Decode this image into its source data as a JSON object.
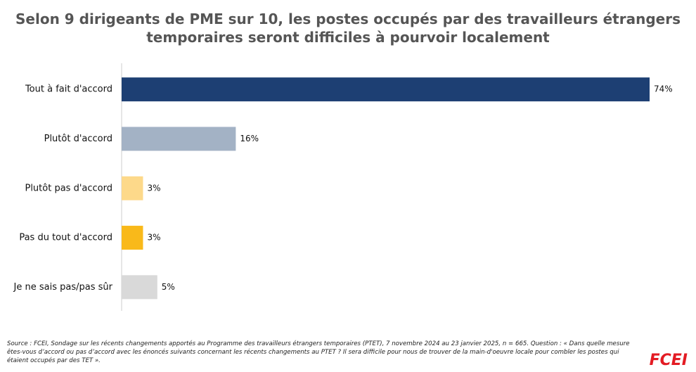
{
  "chart_data": {
    "type": "barh",
    "title": "Selon 9 dirigeants de PME sur 10, les postes occupés par des travailleurs étrangers temporaires seront difficiles à pourvoir localement",
    "categories": [
      "Tout à fait d'accord",
      "Plutôt d'accord",
      "Plutôt pas d'accord",
      "Pas du tout d'accord",
      "Je ne sais pas/pas sûr"
    ],
    "values": [
      74,
      16,
      3,
      3,
      5
    ],
    "value_labels": [
      "74%",
      "16%",
      "3%",
      "3%",
      "5%"
    ],
    "colors": [
      "#1d3f73",
      "#a3b2c5",
      "#fdd98a",
      "#f9b91a",
      "#d9d9d9"
    ],
    "source": "Source : FCEI, Sondage sur les récents changements apportés au Programme des travailleurs étrangers temporaires (PTET), 7 novembre 2024 au 23 janvier 2025, n = 665. Question : « Dans quelle mesure êtes-vous d’accord ou pas d’accord avec les énoncés suivants concernant les récents changements au PTET ? Il sera difficile pour nous de trouver de la main-d'oeuvre locale pour combler les postes qui étaient occupés par des TET ».",
    "logo": "FCEI"
  }
}
